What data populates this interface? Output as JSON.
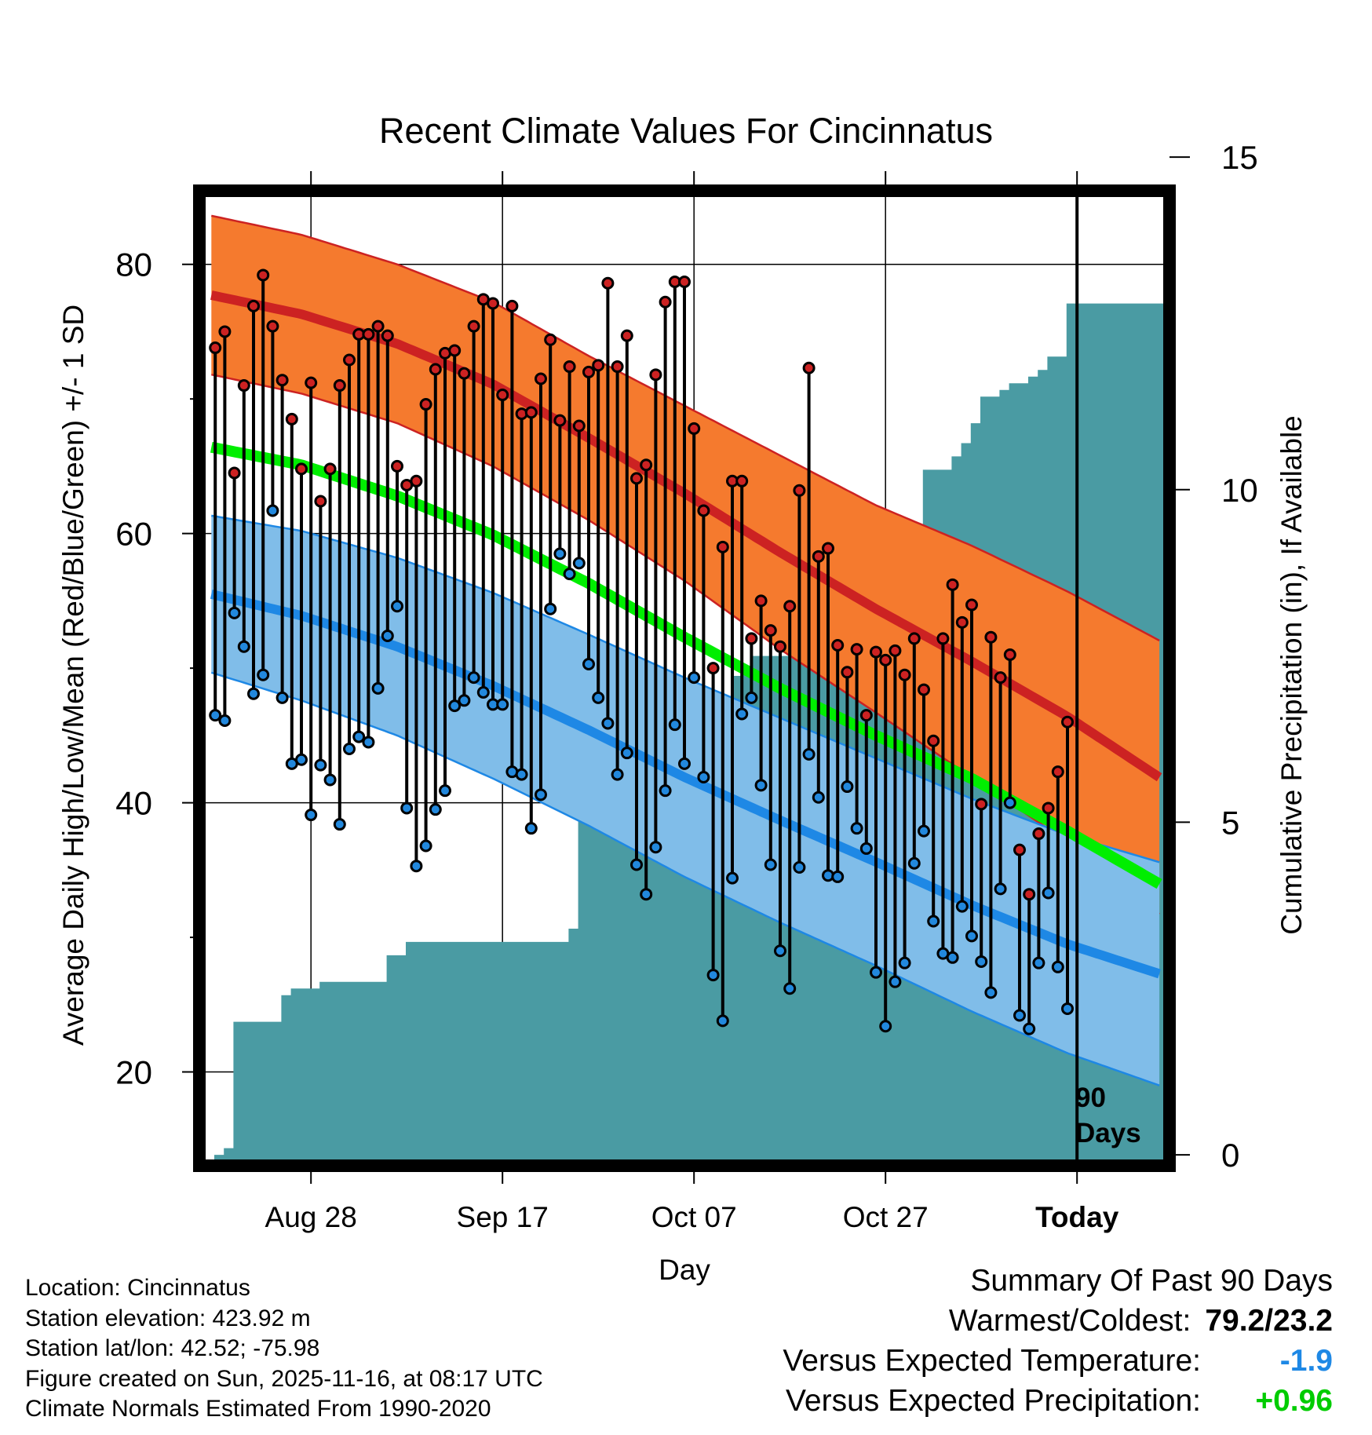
{
  "chart_data": {
    "type": "climate-range",
    "title": "Recent Climate Values For Cincinnatus",
    "xlabel": "Day",
    "ylabel_left": "Average Daily High/Low/Mean (Red/Blue/Green) +/- 1 SD",
    "ylabel_right": "Cumulative Precipitation (in), If Available",
    "x_tick_labels": [
      "Aug 28",
      "Sep 17",
      "Oct 07",
      "Oct 27",
      "Today"
    ],
    "x_tick_days": [
      11,
      31,
      51,
      71,
      91
    ],
    "x_range_days": [
      0,
      100
    ],
    "ylim_left": [
      13.5,
      85
    ],
    "left_ticks": [
      20,
      40,
      60,
      80
    ],
    "left_minor_ticks": [
      30,
      50,
      70
    ],
    "ylim_right": [
      -0.07,
      14.4
    ],
    "right_ticks": [
      0,
      5,
      10,
      15
    ],
    "today_marker_label": [
      "90",
      "Days"
    ],
    "normals": {
      "days": [
        0,
        10,
        20,
        30,
        40,
        50,
        60,
        70,
        80,
        90,
        100
      ],
      "high_mean": [
        77.8,
        76.3,
        74.1,
        71.1,
        67.1,
        63.0,
        58.6,
        54.4,
        50.5,
        46.4,
        41.7
      ],
      "high_sd": [
        5.9,
        5.9,
        5.9,
        6.1,
        6.1,
        6.5,
        7.2,
        7.7,
        8.6,
        9.3,
        10.2
      ],
      "mean": [
        66.5,
        65.1,
        62.8,
        59.9,
        56.3,
        52.3,
        48.5,
        45.0,
        41.8,
        37.9,
        33.8
      ],
      "low_mean": [
        55.6,
        53.9,
        51.6,
        48.7,
        45.4,
        41.9,
        38.7,
        35.6,
        32.4,
        29.5,
        27.2
      ],
      "low_sd": [
        5.8,
        6.3,
        6.6,
        6.9,
        7.1,
        7.4,
        7.6,
        7.7,
        7.9,
        8.1,
        8.3
      ]
    },
    "series": [
      {
        "name": "Daily High",
        "color": "#cc2222",
        "values": [
          73.8,
          75.0,
          64.5,
          71.0,
          76.9,
          79.2,
          75.4,
          71.4,
          68.5,
          64.8,
          71.2,
          62.4,
          64.8,
          71.0,
          72.9,
          74.8,
          74.8,
          75.4,
          74.7,
          65.0,
          63.6,
          63.9,
          69.6,
          72.2,
          73.4,
          73.6,
          71.9,
          75.4,
          77.4,
          77.1,
          70.3,
          76.9,
          68.9,
          69.0,
          71.5,
          74.4,
          68.4,
          72.4,
          68.0,
          72.0,
          72.5,
          78.6,
          72.4,
          74.7,
          64.1,
          65.1,
          71.8,
          77.2,
          78.7,
          78.7,
          67.8,
          61.7,
          50.0,
          59.0,
          63.9,
          63.9,
          52.2,
          55.0,
          52.8,
          51.6,
          54.6,
          63.2,
          72.3,
          58.3,
          58.9,
          51.7,
          49.7,
          51.4,
          46.5,
          51.2,
          50.6,
          51.3,
          49.5,
          52.2,
          48.4,
          44.6,
          52.2,
          56.2,
          53.4,
          54.7,
          39.9,
          52.3,
          49.3,
          51.0,
          36.5,
          33.2,
          37.7,
          39.6,
          42.3,
          46.0
        ]
      },
      {
        "name": "Daily Low",
        "color": "#2288dd",
        "values": [
          46.5,
          46.1,
          54.1,
          51.6,
          48.1,
          49.5,
          61.7,
          47.8,
          42.9,
          43.2,
          39.1,
          42.8,
          41.7,
          38.4,
          44.0,
          44.9,
          44.5,
          48.5,
          52.4,
          54.6,
          39.6,
          35.3,
          36.8,
          39.5,
          40.9,
          47.2,
          47.6,
          49.3,
          48.2,
          47.3,
          47.3,
          42.3,
          42.1,
          38.1,
          40.6,
          54.4,
          58.5,
          57.0,
          57.8,
          50.3,
          47.8,
          45.9,
          42.1,
          43.7,
          35.4,
          33.2,
          36.7,
          40.9,
          45.8,
          42.9,
          49.3,
          41.9,
          27.2,
          23.8,
          34.4,
          46.6,
          47.8,
          41.3,
          35.4,
          29.0,
          26.2,
          35.2,
          43.6,
          40.4,
          34.6,
          34.5,
          41.2,
          38.1,
          36.6,
          27.4,
          23.4,
          26.7,
          28.1,
          35.5,
          37.9,
          31.2,
          28.8,
          28.5,
          32.3,
          30.1,
          28.2,
          25.9,
          33.6,
          40.0,
          24.2,
          23.2,
          28.1,
          33.3,
          27.8,
          24.7
        ]
      },
      {
        "name": "Cumulative Precipitation",
        "color": "#4a9ba3",
        "values": [
          0,
          0.1,
          2.0,
          2.0,
          2.0,
          2.0,
          2.0,
          2.4,
          2.5,
          2.5,
          2.5,
          2.6,
          2.6,
          2.6,
          2.6,
          2.6,
          2.6,
          2.6,
          3.0,
          3.0,
          3.2,
          3.2,
          3.2,
          3.2,
          3.2,
          3.2,
          3.2,
          3.2,
          3.2,
          3.2,
          3.2,
          3.2,
          3.2,
          3.2,
          3.2,
          3.2,
          3.2,
          3.4,
          5.3,
          5.3,
          5.3,
          5.3,
          5.3,
          5.3,
          5.3,
          5.3,
          5.3,
          5.3,
          5.3,
          5.3,
          5.7,
          6.4,
          6.4,
          6.4,
          7.2,
          7.3,
          7.5,
          7.5,
          7.5,
          7.5,
          7.5,
          7.5,
          7.5,
          8.7,
          8.7,
          8.7,
          8.8,
          8.8,
          8.8,
          8.8,
          8.8,
          8.8,
          8.8,
          8.8,
          10.3,
          10.3,
          10.3,
          10.5,
          10.7,
          11.0,
          11.4,
          11.4,
          11.5,
          11.6,
          11.6,
          11.7,
          11.8,
          12.0,
          12.0,
          12.8,
          12.8,
          12.8,
          12.8,
          12.8,
          12.8,
          12.8,
          12.8,
          12.8,
          12.8,
          12.8
        ]
      }
    ],
    "colors": {
      "high_band": "#f57a2e",
      "high_line": "#cc2222",
      "low_band": "#80bde9",
      "low_line": "#1e88e5",
      "mean_line": "#00ee00",
      "mean_line_low_overlap": "#a01414",
      "precip_fill": "#4a9ba3",
      "high_marker": "#cc2222",
      "low_marker": "#2288dd"
    }
  },
  "info": {
    "location": "Location: Cincinnatus",
    "elevation": "Station elevation: 423.92 m",
    "latlon": "Station lat/lon: 42.52; -75.98",
    "created": "Figure created on Sun, 2025-11-16, at 08:17 UTC",
    "normals_note": "Climate Normals Estimated From 1990-2020"
  },
  "summary": {
    "heading": "Summary Of Past 90 Days",
    "warmest_coldest_label": "Warmest/Coldest:",
    "warmest_coldest_value": "79.2/23.2",
    "temp_label": "Versus Expected Temperature:",
    "temp_value": "-1.9",
    "temp_color": "#1e88e5",
    "precip_label": "Versus Expected Precipitation:",
    "precip_value": "+0.96",
    "precip_color": "#00cc00"
  }
}
